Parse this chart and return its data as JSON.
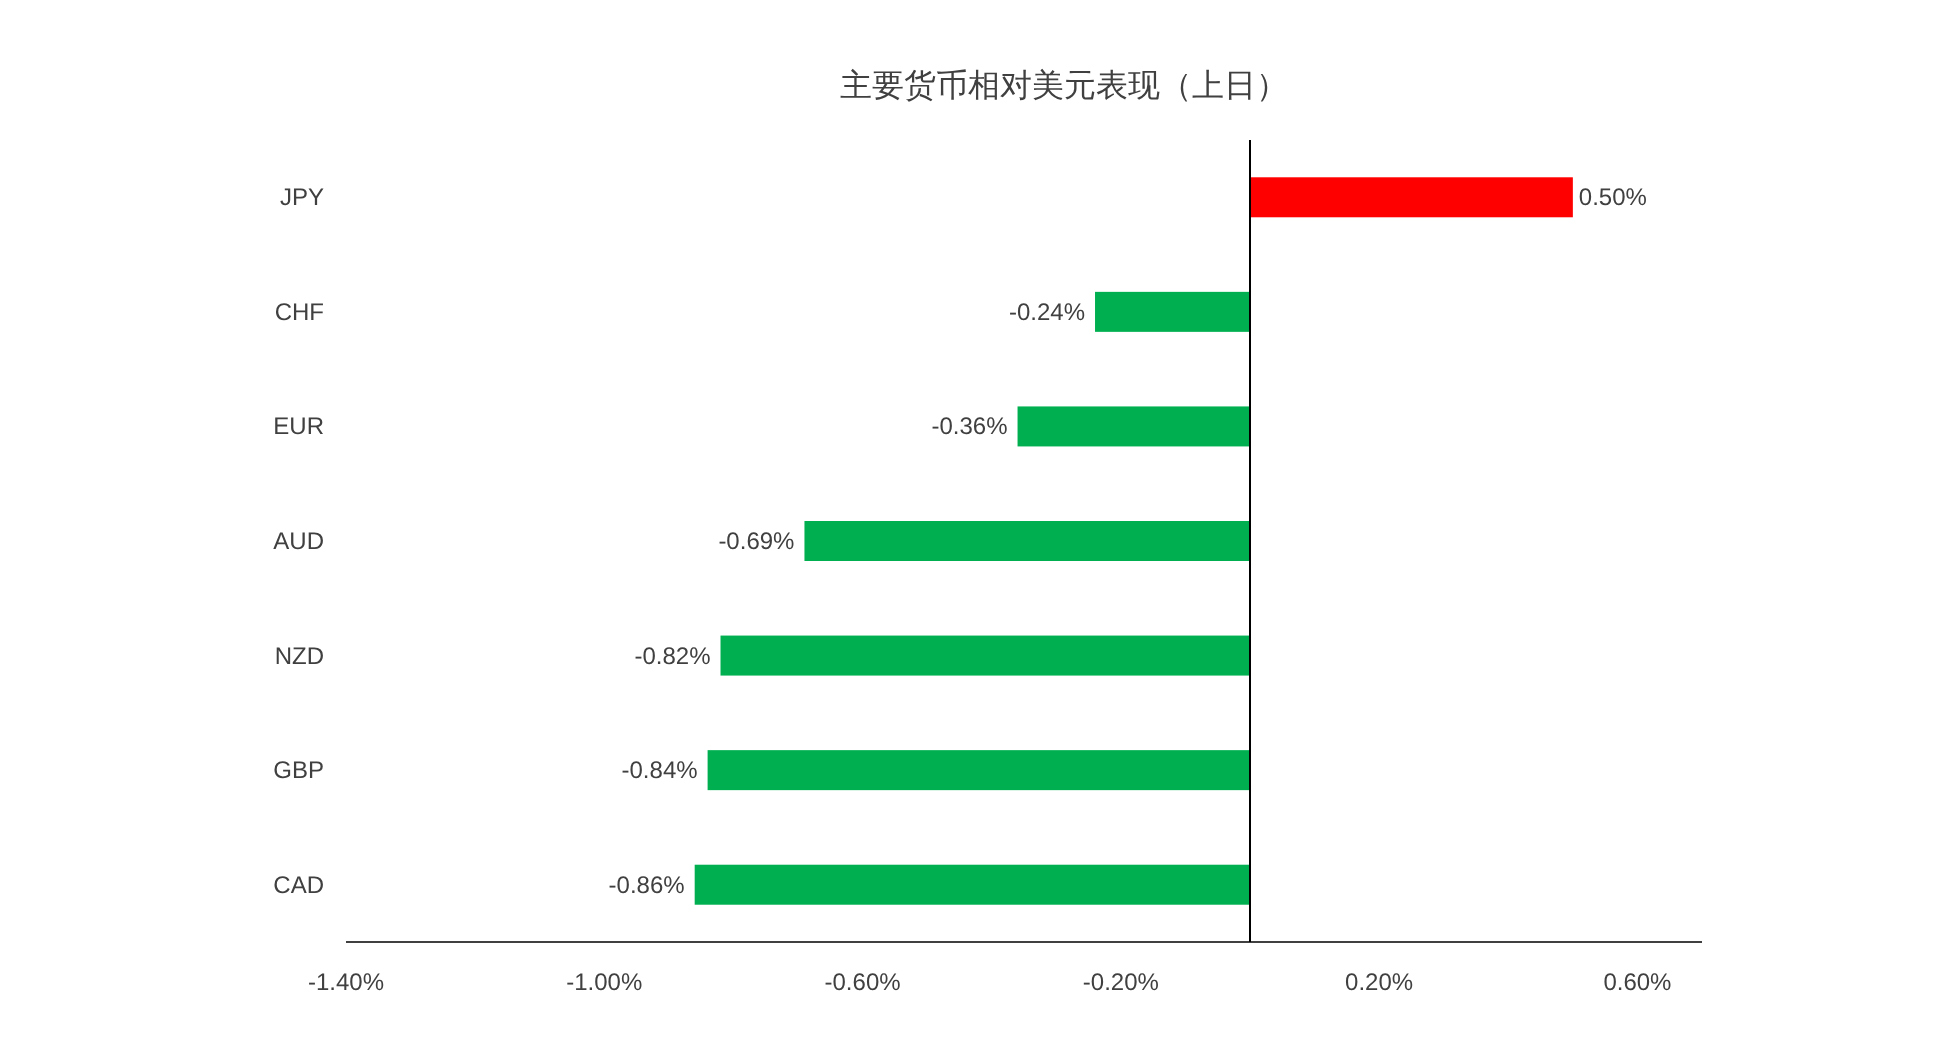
{
  "chart_data": {
    "type": "bar",
    "orientation": "horizontal",
    "title": "主要货币相对美元表现（上日）",
    "categories": [
      "JPY",
      "CHF",
      "EUR",
      "AUD",
      "NZD",
      "GBP",
      "CAD"
    ],
    "values": [
      0.5,
      -0.24,
      -0.36,
      -0.69,
      -0.82,
      -0.84,
      -0.86
    ],
    "colors": [
      "#ff0000",
      "#00b050",
      "#00b050",
      "#00b050",
      "#00b050",
      "#00b050",
      "#00b050"
    ],
    "value_labels": [
      "0.50%",
      "-0.24%",
      "-0.36%",
      "-0.69%",
      "-0.82%",
      "-0.84%",
      "-0.86%"
    ],
    "xlim": [
      -1.4,
      0.7
    ],
    "xticks": [
      {
        "value": -1.4,
        "label": "-1.40%"
      },
      {
        "value": -1.0,
        "label": "-1.00%"
      },
      {
        "value": -0.6,
        "label": "-0.60%"
      },
      {
        "value": -0.2,
        "label": "-0.20%"
      },
      {
        "value": 0.2,
        "label": "0.20%"
      },
      {
        "value": 0.6,
        "label": "0.60%"
      }
    ],
    "grid": false
  }
}
